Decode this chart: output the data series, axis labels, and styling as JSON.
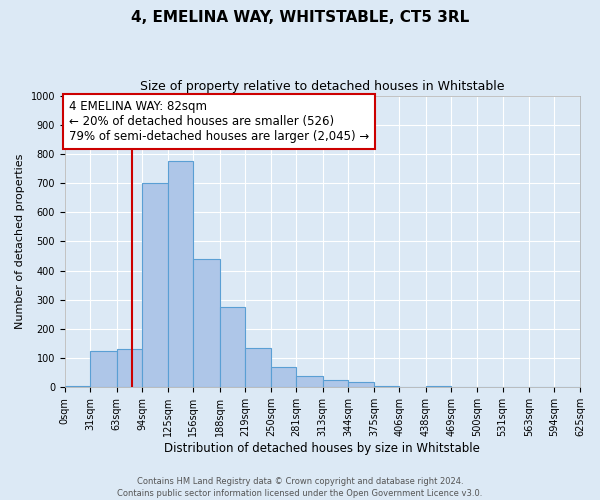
{
  "title": "4, EMELINA WAY, WHITSTABLE, CT5 3RL",
  "subtitle": "Size of property relative to detached houses in Whitstable",
  "xlabel": "Distribution of detached houses by size in Whitstable",
  "ylabel": "Number of detached properties",
  "bin_edges": [
    0,
    31,
    63,
    94,
    125,
    156,
    188,
    219,
    250,
    281,
    313,
    344,
    375,
    406,
    438,
    469,
    500,
    531,
    563,
    594,
    625
  ],
  "bar_heights": [
    5,
    125,
    130,
    700,
    775,
    440,
    275,
    135,
    70,
    40,
    25,
    20,
    5,
    0,
    5,
    0,
    0,
    0,
    0,
    0
  ],
  "bar_color": "#aec6e8",
  "bar_edgecolor": "#5a9fd4",
  "bar_linewidth": 0.8,
  "vline_x": 82,
  "vline_color": "#cc0000",
  "vline_linewidth": 1.5,
  "annotation_line1": "4 EMELINA WAY: 82sqm",
  "annotation_line2": "← 20% of detached houses are smaller (526)",
  "annotation_line3": "79% of semi-detached houses are larger (2,045) →",
  "annotation_box_edgecolor": "#cc0000",
  "annotation_box_facecolor": "#ffffff",
  "annotation_fontsize": 8.5,
  "ylim": [
    0,
    1000
  ],
  "yticks": [
    0,
    100,
    200,
    300,
    400,
    500,
    600,
    700,
    800,
    900,
    1000
  ],
  "xlim": [
    0,
    625
  ],
  "bg_color": "#dce9f5",
  "plot_bg_color": "#dce9f5",
  "footer_line1": "Contains HM Land Registry data © Crown copyright and database right 2024.",
  "footer_line2": "Contains public sector information licensed under the Open Government Licence v3.0.",
  "title_fontsize": 11,
  "subtitle_fontsize": 9,
  "xlabel_fontsize": 8.5,
  "ylabel_fontsize": 8,
  "tick_fontsize": 7,
  "grid_color": "#ffffff",
  "grid_linewidth": 0.8
}
